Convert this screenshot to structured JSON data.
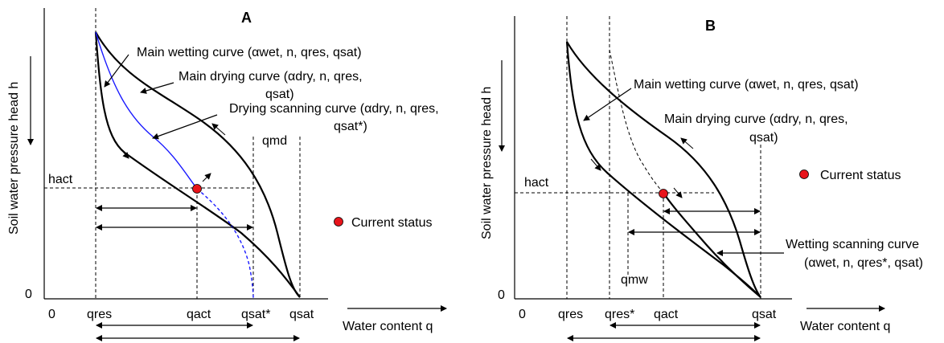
{
  "panelA": {
    "title": "A",
    "y_axis_label": "Soil water pressure head h",
    "x_axis_label": "Water content q",
    "zero_y": "0",
    "zero_x": "0",
    "h_act": "hact",
    "labels": {
      "main_wetting": "Main wetting curve (αwet, n, qres, qsat)",
      "main_drying_1": "Main drying curve (αdry, n, qres,",
      "main_drying_2": "qsat)",
      "drying_scanning_1": "Drying scanning curve (αdry, n, qres,",
      "drying_scanning_2": "qsat*)",
      "q_md": "qmd",
      "current_status": "Current status"
    },
    "ticks": [
      "qres",
      "qact",
      "qsat*",
      "qsat"
    ]
  },
  "panelB": {
    "title": "B",
    "y_axis_label": "Soil water pressure head h",
    "x_axis_label": "Water content q",
    "zero_y": "0",
    "zero_x": "0",
    "h_act": "hact",
    "labels": {
      "main_wetting": "Main wetting curve (αwet, n, qres, qsat)",
      "main_drying_1": "Main drying curve (αdry, n, qres,",
      "main_drying_2": "qsat)",
      "current_status": "Current status",
      "q_mw": "qmw",
      "wetting_scanning_1": "Wetting scanning curve",
      "wetting_scanning_2": "(αwet, n, qres*, qsat)"
    },
    "ticks": [
      "qres",
      "qres*",
      "qact",
      "qsat"
    ]
  },
  "colors": {
    "marker": "#e8141b",
    "blue_curve": "#1a1aff"
  }
}
